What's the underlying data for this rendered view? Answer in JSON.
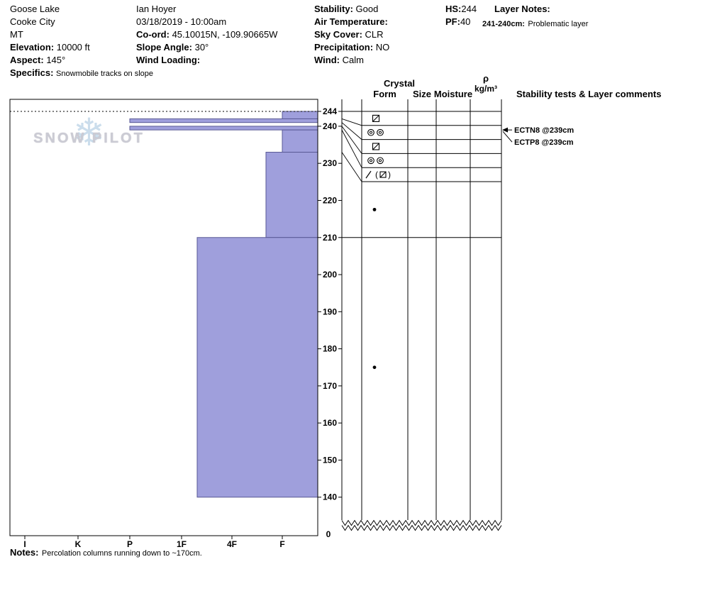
{
  "header": {
    "site": {
      "name": "Goose Lake",
      "area": "Cooke City",
      "state": "MT",
      "elevation_label": "Elevation:",
      "elevation_value": "10000 ft",
      "aspect_label": "Aspect:",
      "aspect_value": "145°",
      "specifics_label": "Specifics:",
      "specifics_value": "Snowmobile tracks on slope"
    },
    "observer": {
      "name": "Ian Hoyer",
      "datetime": "03/18/2019 - 10:00am",
      "coord_label": "Co-ord:",
      "coord_value": "45.10015N, -109.90665W",
      "slope_angle_label": "Slope Angle:",
      "slope_angle_value": "30°",
      "wind_loading_label": "Wind Loading:",
      "wind_loading_value": ""
    },
    "conditions": {
      "stability_label": "Stability:",
      "stability_value": "Good",
      "air_temp_label": "Air Temperature:",
      "air_temp_value": "",
      "sky_cover_label": "Sky Cover:",
      "sky_cover_value": "CLR",
      "precipitation_label": "Precipitation:",
      "precipitation_value": "NO",
      "wind_label": "Wind:",
      "wind_value": "Calm"
    },
    "summary": {
      "hs_label": "HS:",
      "hs_value": "244",
      "pf_label": "PF:",
      "pf_value": "40"
    },
    "layer_notes": {
      "label": "Layer Notes:",
      "note_depth": "241-240cm:",
      "note_text": "Problematic layer"
    }
  },
  "chart": {
    "logo_text": "SNOW PILOT",
    "columns": {
      "crystal": "Crystal",
      "form": "Form",
      "size": "Size",
      "moisture": "Moisture",
      "rho": "ρ",
      "rho_units": "kg/m³",
      "stability_tests": "Stability tests & Layer comments"
    },
    "zero_label": "0",
    "colors": {
      "bar_fill": "#9f9fdc",
      "bar_stroke": "#5a5a96",
      "logo_blue": "#c9dcec",
      "logo_gray": "#c9c9d2"
    }
  },
  "footer": {
    "notes_label": "Notes:",
    "notes_value": "Percolation columns running down to ~170cm."
  },
  "chart_data": {
    "type": "snow-profile",
    "hs_cm": 244,
    "pit_bottom_cm": 140,
    "depth_unit": "cm",
    "depth_ticks": [
      244,
      240,
      230,
      220,
      210,
      200,
      190,
      180,
      170,
      160,
      150,
      140
    ],
    "hardness_axis": [
      "I",
      "K",
      "P",
      "1F",
      "4F",
      "F"
    ],
    "layers": [
      {
        "top_cm": 244,
        "bottom_cm": 242,
        "hardness": "F",
        "grain_form": "faceted-rounding",
        "symbol": "square-slash"
      },
      {
        "top_cm": 242,
        "bottom_cm": 241,
        "hardness": "P",
        "grain_form": "melt-freeze-crust",
        "symbol": "double-circle"
      },
      {
        "top_cm": 241,
        "bottom_cm": 240,
        "hardness": "",
        "grain_form": "faceted-rounding",
        "symbol": "square-slash",
        "note": "Problematic layer"
      },
      {
        "top_cm": 240,
        "bottom_cm": 239,
        "hardness": "P",
        "grain_form": "melt-freeze-crust",
        "symbol": "double-circle"
      },
      {
        "top_cm": 239,
        "bottom_cm": 233,
        "hardness": "F",
        "grain_form": "decomposing-with-facets",
        "symbol": "slash-paren-square"
      },
      {
        "top_cm": 233,
        "bottom_cm": 210,
        "hardness": "4F-F",
        "grain_form": "rounded-grains",
        "symbol": "dot"
      },
      {
        "top_cm": 210,
        "bottom_cm": 140,
        "hardness": "1F-4F",
        "grain_form": "rounded-grains",
        "symbol": "dot"
      }
    ],
    "stability_tests": [
      {
        "label": "ECTN8 @239cm",
        "depth_cm": 239
      },
      {
        "label": "ECTP8 @239cm",
        "depth_cm": 239
      }
    ]
  }
}
